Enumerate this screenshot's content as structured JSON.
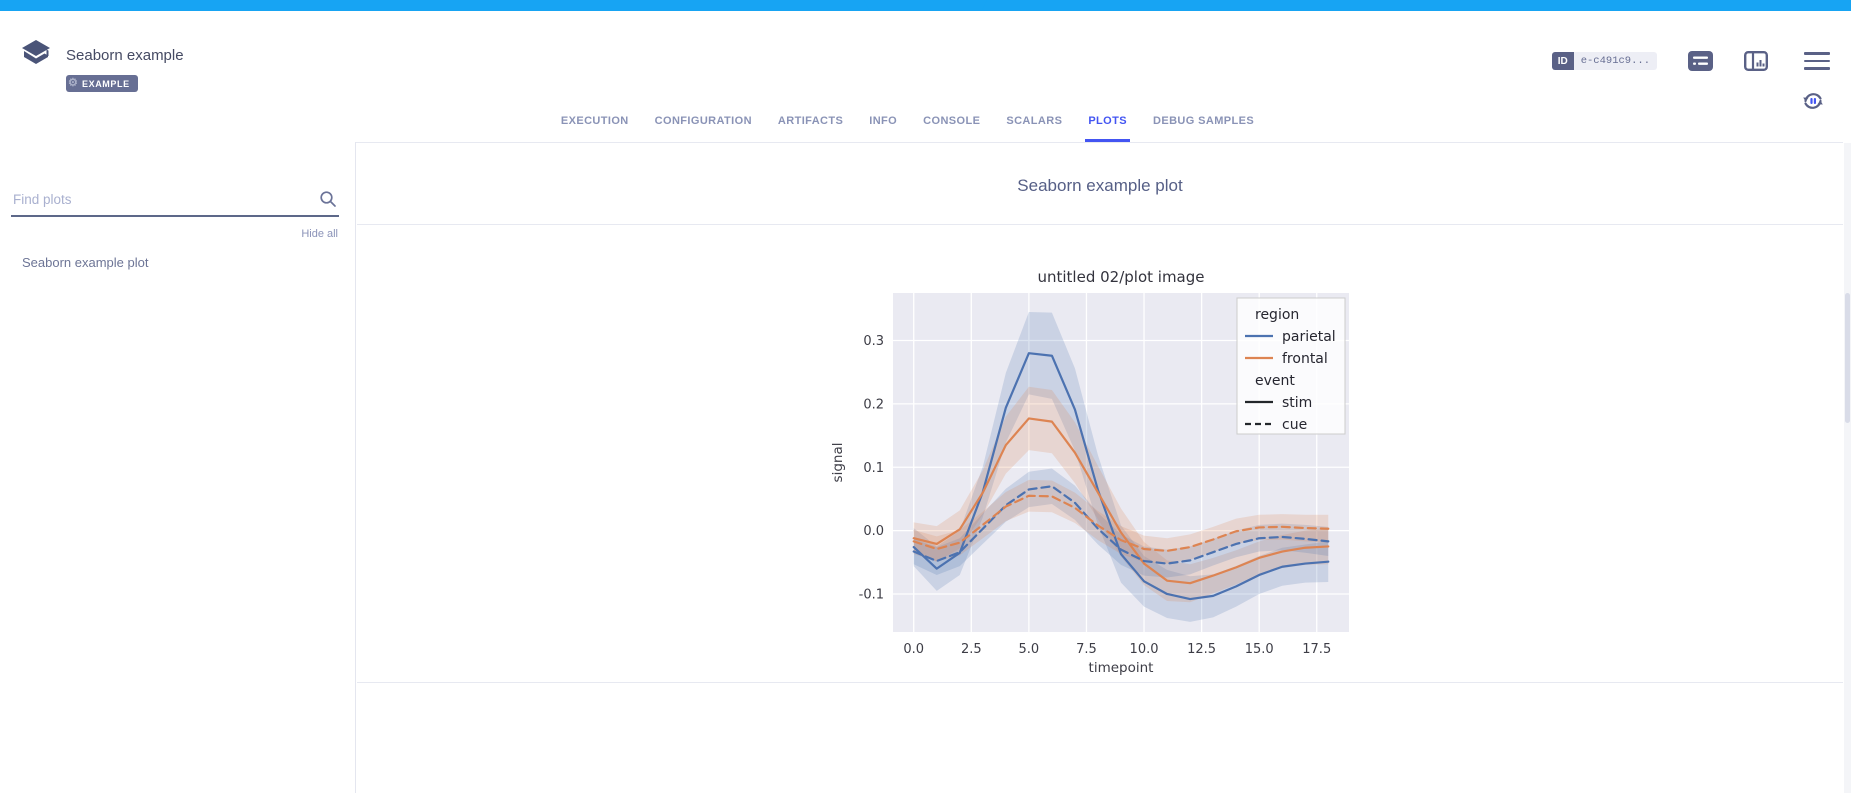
{
  "topbar": {
    "status": "COMPLETED",
    "color": "#17a4f3"
  },
  "header": {
    "title": "Seaborn example",
    "badge": "EXAMPLE",
    "id_label": "ID",
    "id_value": "e-c491c9...",
    "icons": [
      "details-panel-icon",
      "plots-layout-icon",
      "menu-icon",
      "auto-refresh-icon"
    ]
  },
  "tabs": [
    {
      "label": "EXECUTION",
      "active": false
    },
    {
      "label": "CONFIGURATION",
      "active": false
    },
    {
      "label": "ARTIFACTS",
      "active": false
    },
    {
      "label": "INFO",
      "active": false
    },
    {
      "label": "CONSOLE",
      "active": false
    },
    {
      "label": "SCALARS",
      "active": false
    },
    {
      "label": "PLOTS",
      "active": true
    },
    {
      "label": "DEBUG SAMPLES",
      "active": false
    }
  ],
  "sidebar": {
    "search_placeholder": "Find plots",
    "hide_all": "Hide all",
    "items": [
      "Seaborn example plot"
    ]
  },
  "main": {
    "heading": "Seaborn example plot"
  },
  "chart_data": {
    "type": "line",
    "title": "untitled 02/plot image",
    "xlabel": "timepoint",
    "ylabel": "signal",
    "xlim": [
      -0.9,
      18.9
    ],
    "ylim": [
      -0.16,
      0.375
    ],
    "xticks": [
      0.0,
      2.5,
      5.0,
      7.5,
      10.0,
      12.5,
      15.0,
      17.5
    ],
    "yticks": [
      -0.1,
      0.0,
      0.1,
      0.2,
      0.3
    ],
    "background": "#eaeaf2",
    "grid": true,
    "legend": {
      "position": "upper right",
      "groups": [
        {
          "title": "region",
          "entries": [
            {
              "label": "parietal",
              "color": "#4c72b0",
              "dash": "solid"
            },
            {
              "label": "frontal",
              "color": "#dd8452",
              "dash": "solid"
            }
          ]
        },
        {
          "title": "event",
          "entries": [
            {
              "label": "stim",
              "color": "#23272b",
              "dash": "solid"
            },
            {
              "label": "cue",
              "color": "#23272b",
              "dash": "dashed"
            }
          ]
        }
      ]
    },
    "x": [
      0,
      1,
      2,
      3,
      4,
      5,
      6,
      7,
      8,
      9,
      10,
      11,
      12,
      13,
      14,
      15,
      16,
      17,
      18
    ],
    "series": [
      {
        "name": "parietal/stim",
        "color": "#4c72b0",
        "dash": "solid",
        "values": [
          -0.026,
          -0.06,
          -0.035,
          0.061,
          0.194,
          0.28,
          0.276,
          0.191,
          0.064,
          -0.037,
          -0.08,
          -0.1,
          -0.108,
          -0.103,
          -0.088,
          -0.07,
          -0.057,
          -0.052,
          -0.049
        ],
        "ci": [
          0.03,
          0.035,
          0.035,
          0.04,
          0.055,
          0.065,
          0.068,
          0.065,
          0.055,
          0.045,
          0.04,
          0.038,
          0.036,
          0.034,
          0.032,
          0.03,
          0.03,
          0.03,
          0.032
        ]
      },
      {
        "name": "frontal/stim",
        "color": "#dd8452",
        "dash": "solid",
        "values": [
          -0.012,
          -0.021,
          0.002,
          0.06,
          0.135,
          0.177,
          0.172,
          0.123,
          0.06,
          -0.003,
          -0.052,
          -0.079,
          -0.083,
          -0.071,
          -0.058,
          -0.043,
          -0.033,
          -0.027,
          -0.025
        ],
        "ci": [
          0.025,
          0.028,
          0.03,
          0.035,
          0.045,
          0.05,
          0.05,
          0.048,
          0.042,
          0.038,
          0.034,
          0.032,
          0.03,
          0.028,
          0.027,
          0.026,
          0.026,
          0.027,
          0.028
        ]
      },
      {
        "name": "parietal/cue",
        "color": "#4c72b0",
        "dash": "dashed",
        "values": [
          -0.033,
          -0.048,
          -0.034,
          0.003,
          0.04,
          0.065,
          0.07,
          0.044,
          0.003,
          -0.03,
          -0.048,
          -0.052,
          -0.047,
          -0.034,
          -0.021,
          -0.012,
          -0.01,
          -0.013,
          -0.017
        ],
        "ci": [
          0.02,
          0.022,
          0.022,
          0.024,
          0.026,
          0.028,
          0.028,
          0.027,
          0.025,
          0.024,
          0.023,
          0.022,
          0.022,
          0.021,
          0.021,
          0.021,
          0.021,
          0.022,
          0.023
        ]
      },
      {
        "name": "frontal/cue",
        "color": "#dd8452",
        "dash": "dashed",
        "values": [
          -0.017,
          -0.029,
          -0.019,
          0.009,
          0.038,
          0.055,
          0.054,
          0.036,
          0.008,
          -0.015,
          -0.029,
          -0.032,
          -0.026,
          -0.014,
          -0.001,
          0.005,
          0.006,
          0.004,
          0.003
        ],
        "ci": [
          0.018,
          0.02,
          0.02,
          0.021,
          0.023,
          0.025,
          0.025,
          0.024,
          0.023,
          0.022,
          0.021,
          0.02,
          0.02,
          0.02,
          0.02,
          0.02,
          0.02,
          0.021,
          0.022
        ]
      }
    ]
  }
}
